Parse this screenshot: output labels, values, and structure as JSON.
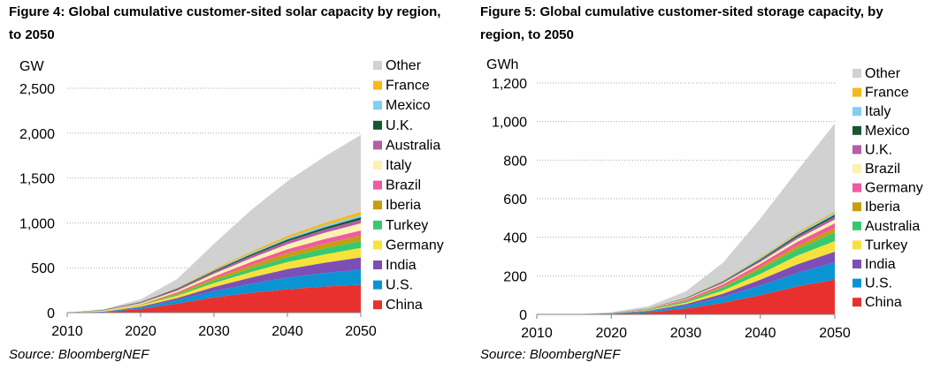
{
  "figures": [
    {
      "title": "Figure 4: Global cumulative customer-sited solar capacity by region, to 2050",
      "source": "Source: BloombergNEF"
    },
    {
      "title": "Figure 5: Global cumulative customer-sited storage capacity, by region, to 2050",
      "source": "Source: BloombergNEF"
    }
  ],
  "chart_data": [
    {
      "type": "area",
      "stacked": true,
      "ylabel": "GW",
      "xlabel": "",
      "x": [
        2010,
        2015,
        2020,
        2025,
        2030,
        2035,
        2040,
        2045,
        2050
      ],
      "xticks": [
        "2010",
        "2020",
        "2030",
        "2040",
        "2050"
      ],
      "xlim": [
        2010,
        2050
      ],
      "ylim": [
        0,
        2500
      ],
      "yticks": [
        "0",
        "500",
        "1,000",
        "1,500",
        "2,000",
        "2,500"
      ],
      "grid": true,
      "legend_position": "right",
      "series": [
        {
          "name": "China",
          "color": "#e8312f",
          "values": [
            0,
            5,
            40,
            100,
            170,
            220,
            260,
            290,
            310
          ]
        },
        {
          "name": "U.S.",
          "color": "#0b94d4",
          "values": [
            0,
            5,
            18,
            40,
            70,
            100,
            130,
            150,
            170
          ]
        },
        {
          "name": "India",
          "color": "#7d4fb6",
          "values": [
            0,
            1,
            8,
            22,
            45,
            70,
            95,
            115,
            135
          ]
        },
        {
          "name": "Germany",
          "color": "#f7e23b",
          "values": [
            0,
            6,
            15,
            28,
            45,
            62,
            78,
            92,
            105
          ]
        },
        {
          "name": "Turkey",
          "color": "#3ac86e",
          "values": [
            0,
            0,
            3,
            12,
            25,
            40,
            55,
            68,
            80
          ]
        },
        {
          "name": "Iberia",
          "color": "#c59d12",
          "values": [
            0,
            2,
            6,
            15,
            26,
            37,
            46,
            53,
            60
          ]
        },
        {
          "name": "Brazil",
          "color": "#f05aa0",
          "values": [
            0,
            0,
            3,
            10,
            22,
            33,
            42,
            50,
            55
          ]
        },
        {
          "name": "Italy",
          "color": "#fbf1b2",
          "values": [
            0,
            5,
            10,
            18,
            30,
            42,
            56,
            70,
            80
          ]
        },
        {
          "name": "Australia",
          "color": "#b45ea6",
          "values": [
            0,
            5,
            10,
            15,
            21,
            27,
            32,
            36,
            40
          ]
        },
        {
          "name": "U.K.",
          "color": "#17562e",
          "values": [
            0,
            3,
            5,
            8,
            12,
            16,
            20,
            24,
            28
          ]
        },
        {
          "name": "Mexico",
          "color": "#7fd0f1",
          "values": [
            0,
            0,
            1,
            5,
            9,
            14,
            18,
            22,
            25
          ]
        },
        {
          "name": "France",
          "color": "#f6b81c",
          "values": [
            0,
            1,
            3,
            7,
            12,
            18,
            24,
            30,
            36
          ]
        },
        {
          "name": "Other",
          "color": "#d1d1d1",
          "values": [
            0,
            5,
            26,
            95,
            280,
            460,
            610,
            735,
            856
          ]
        }
      ]
    },
    {
      "type": "area",
      "stacked": true,
      "ylabel": "GWh",
      "xlabel": "",
      "x": [
        2010,
        2015,
        2020,
        2025,
        2030,
        2035,
        2040,
        2045,
        2050
      ],
      "xticks": [
        "2010",
        "2020",
        "2030",
        "2040",
        "2050"
      ],
      "xlim": [
        2010,
        2050
      ],
      "ylim": [
        0,
        1200
      ],
      "yticks": [
        "0",
        "200",
        "400",
        "600",
        "800",
        "1,000",
        "1,200"
      ],
      "grid": true,
      "legend_position": "right",
      "series": [
        {
          "name": "China",
          "color": "#e8312f",
          "values": [
            0,
            0,
            3,
            10,
            30,
            60,
            100,
            145,
            180
          ]
        },
        {
          "name": "U.S.",
          "color": "#0b94d4",
          "values": [
            0,
            0,
            2,
            6,
            15,
            30,
            50,
            70,
            90
          ]
        },
        {
          "name": "India",
          "color": "#7d4fb6",
          "values": [
            0,
            0,
            1,
            3,
            8,
            17,
            30,
            45,
            55
          ]
        },
        {
          "name": "Turkey",
          "color": "#f7e23b",
          "values": [
            0,
            0,
            1,
            3,
            8,
            17,
            30,
            45,
            55
          ]
        },
        {
          "name": "Australia",
          "color": "#3ac86e",
          "values": [
            0,
            0,
            1,
            3,
            7,
            15,
            25,
            35,
            45
          ]
        },
        {
          "name": "Iberia",
          "color": "#c59d12",
          "values": [
            0,
            0,
            0,
            1,
            3,
            7,
            12,
            17,
            22
          ]
        },
        {
          "name": "Germany",
          "color": "#f05aa0",
          "values": [
            0,
            0,
            1,
            3,
            6,
            10,
            15,
            20,
            25
          ]
        },
        {
          "name": "Brazil",
          "color": "#fbf1b2",
          "values": [
            0,
            0,
            0,
            1,
            3,
            6,
            10,
            15,
            20
          ]
        },
        {
          "name": "U.K.",
          "color": "#b45ea6",
          "values": [
            0,
            0,
            0,
            1,
            3,
            5,
            8,
            12,
            15
          ]
        },
        {
          "name": "Mexico",
          "color": "#17562e",
          "values": [
            0,
            0,
            0,
            1,
            2,
            4,
            6,
            8,
            10
          ]
        },
        {
          "name": "Italy",
          "color": "#7fd0f1",
          "values": [
            0,
            0,
            0,
            1,
            2,
            4,
            6,
            8,
            10
          ]
        },
        {
          "name": "France",
          "color": "#f6b81c",
          "values": [
            0,
            0,
            0,
            1,
            2,
            3,
            5,
            7,
            8
          ]
        },
        {
          "name": "Other",
          "color": "#d1d1d1",
          "values": [
            0,
            0,
            2,
            8,
            30,
            90,
            200,
            320,
            455
          ]
        }
      ]
    }
  ]
}
